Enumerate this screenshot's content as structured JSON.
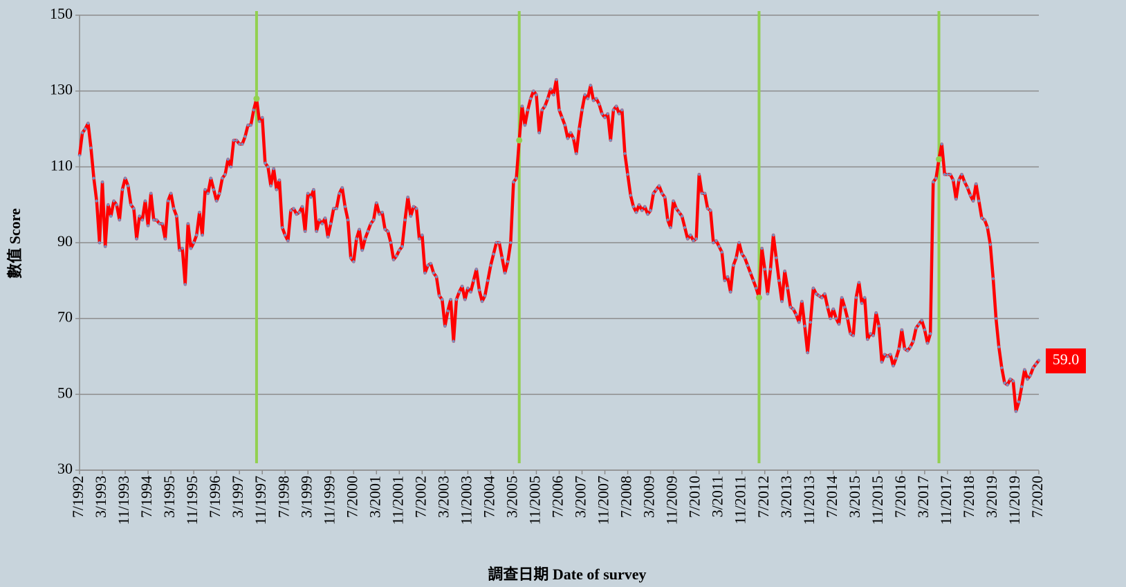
{
  "chart_data": {
    "type": "line",
    "xlabel": "調查日期   Date of survey",
    "ylabel": "數值 Score",
    "color": "#ff0000",
    "marker_color": "#7a8fc0",
    "grid": true,
    "ylim": [
      30,
      150
    ],
    "yticks": [
      30,
      50,
      70,
      90,
      110,
      130,
      150
    ],
    "reference_lines": {
      "color": "#92d050",
      "x": [
        62,
        154,
        238,
        301
      ]
    },
    "categories": [
      "7/1992",
      null,
      null,
      null,
      null,
      null,
      null,
      null,
      "3/1993",
      null,
      null,
      null,
      null,
      null,
      null,
      null,
      "11/1993",
      null,
      null,
      null,
      null,
      null,
      null,
      null,
      "7/1994",
      null,
      null,
      null,
      null,
      null,
      null,
      null,
      "3/1995",
      null,
      null,
      null,
      null,
      null,
      null,
      null,
      "11/1995",
      null,
      null,
      null,
      null,
      null,
      null,
      null,
      "7/1996",
      null,
      null,
      null,
      null,
      null,
      null,
      null,
      "3/1997",
      null,
      null,
      null,
      null,
      null,
      null,
      null,
      "11/1997",
      null,
      null,
      null,
      null,
      null,
      null,
      null,
      "7/1998",
      null,
      null,
      null,
      null,
      null,
      null,
      null,
      "3/1999",
      null,
      null,
      null,
      null,
      null,
      null,
      null,
      "11/1999",
      null,
      null,
      null,
      null,
      null,
      null,
      null,
      "7/2000",
      null,
      null,
      null,
      null,
      null,
      null,
      null,
      "3/2001",
      null,
      null,
      null,
      null,
      null,
      null,
      null,
      "11/2001",
      null,
      null,
      null,
      null,
      null,
      null,
      null,
      "7/2002",
      null,
      null,
      null,
      null,
      null,
      null,
      null,
      "3/2003",
      null,
      null,
      null,
      null,
      null,
      null,
      null,
      "11/2003",
      null,
      null,
      null,
      null,
      null,
      null,
      null,
      "7/2004",
      null,
      null,
      null,
      null,
      null,
      null,
      null,
      "3/2005",
      null,
      null,
      null,
      null,
      null,
      null,
      null,
      "11/2005",
      null,
      null,
      null,
      null,
      null,
      null,
      null,
      "7/2006",
      null,
      null,
      null,
      null,
      null,
      null,
      null,
      "3/2007",
      null,
      null,
      null,
      null,
      null,
      null,
      null,
      "11/2007",
      null,
      null,
      null,
      null,
      null,
      null,
      null,
      "7/2008",
      null,
      null,
      null,
      null,
      null,
      null,
      null,
      "3/2009",
      null,
      null,
      null,
      null,
      null,
      null,
      null,
      "11/2009",
      null,
      null,
      null,
      null,
      null,
      null,
      null,
      "7/2010",
      null,
      null,
      null,
      null,
      null,
      null,
      null,
      "3/2011",
      null,
      null,
      null,
      null,
      null,
      null,
      null,
      "11/2011",
      null,
      null,
      null,
      null,
      null,
      null,
      null,
      "7/2012",
      null,
      null,
      null,
      null,
      null,
      null,
      null,
      "3/2013",
      null,
      null,
      null,
      null,
      null,
      null,
      null,
      "11/2013",
      null,
      null,
      null,
      null,
      null,
      null,
      null,
      "7/2014",
      null,
      null,
      null,
      null,
      null,
      null,
      null,
      "3/2015",
      null,
      null,
      null,
      null,
      null,
      null,
      null,
      "11/2015",
      null,
      null,
      null,
      null,
      null,
      null,
      null,
      "7/2016",
      null,
      null,
      null,
      null,
      null,
      null,
      null,
      "3/2017",
      null,
      null,
      null,
      null,
      null,
      null,
      null,
      "11/2017",
      null,
      null,
      null,
      null,
      null,
      null,
      null,
      "7/2018",
      null,
      null,
      null,
      null,
      null,
      null,
      null,
      "3/2019",
      null,
      null,
      null,
      null,
      null,
      null,
      null,
      "11/2019",
      null,
      null,
      null,
      null,
      null,
      null,
      null,
      "7/2020"
    ],
    "values": [
      113,
      119,
      120,
      121.5,
      115,
      107,
      101,
      90,
      106,
      89,
      100,
      97,
      101,
      100,
      96,
      104,
      107,
      105,
      100,
      99,
      91,
      97,
      96,
      101,
      94.5,
      103,
      96,
      96,
      95,
      95,
      91,
      101,
      103,
      99,
      97,
      88,
      88.5,
      79,
      95,
      88.5,
      90,
      92,
      98,
      92,
      104,
      103,
      107,
      104,
      101,
      103,
      107,
      108,
      112,
      110,
      117,
      117,
      116,
      116,
      118,
      121,
      121,
      125,
      128,
      122,
      123,
      111,
      110,
      105,
      109.5,
      104,
      106.5,
      94,
      92,
      90.5,
      98.5,
      99,
      97.5,
      98,
      99.5,
      93,
      103,
      102,
      104,
      93,
      96,
      95,
      96.5,
      91.5,
      95,
      99,
      99,
      103,
      104.5,
      99.5,
      96,
      86,
      85,
      91,
      93.5,
      88,
      91,
      93,
      95,
      96,
      100.5,
      97.5,
      98,
      93.5,
      93,
      90,
      85.5,
      86.5,
      88,
      89,
      96,
      102,
      97,
      99.5,
      99,
      91,
      92,
      82,
      84,
      84.5,
      82,
      81,
      76,
      75,
      68,
      72,
      75,
      64,
      75,
      77,
      78.5,
      75,
      78,
      77,
      80,
      83,
      77.5,
      74.5,
      76,
      80,
      84,
      87,
      90,
      90,
      86,
      82,
      85,
      90,
      106,
      107,
      117,
      126,
      121,
      125,
      128,
      130,
      129,
      119,
      125,
      126,
      128,
      130.5,
      129,
      133,
      125,
      123,
      121,
      117.5,
      119,
      117.5,
      113.5,
      120,
      125,
      129,
      128,
      131.5,
      127.5,
      128,
      126.5,
      124,
      123,
      124,
      117,
      125,
      126,
      124,
      125,
      113.5,
      108,
      102.5,
      99.5,
      98,
      100,
      98.5,
      99.5,
      97.5,
      98.5,
      103,
      104,
      105,
      103,
      102,
      96,
      94,
      101,
      99,
      98,
      97,
      94,
      91,
      92,
      90.5,
      91,
      108,
      103,
      103,
      99,
      98.5,
      90,
      90.5,
      89,
      87.5,
      80,
      81,
      77,
      84,
      86,
      90,
      87,
      86,
      84,
      82,
      80,
      78,
      75.5,
      88.5,
      83,
      76.5,
      83,
      92,
      86,
      80,
      74.5,
      82.5,
      78,
      73,
      72.5,
      71,
      69,
      74.5,
      68,
      61,
      69,
      78,
      76.5,
      76,
      75.5,
      76.5,
      73,
      70,
      72.5,
      70,
      68.5,
      75.5,
      73,
      70,
      66,
      65.5,
      75.5,
      79.5,
      74,
      75.5,
      64.5,
      66,
      65.5,
      71.5,
      68,
      58.5,
      60.5,
      60,
      60.5,
      57.5,
      59.5,
      62,
      67,
      62,
      61.5,
      62.5,
      64,
      67.5,
      68.5,
      69.5,
      67,
      63.5,
      66,
      106,
      107,
      112,
      116,
      108,
      108,
      108,
      106.5,
      101.5,
      106.5,
      108,
      106,
      104.5,
      102.5,
      101,
      105.5,
      101,
      96.5,
      96,
      94,
      89.5,
      80.5,
      70,
      62.5,
      57,
      53,
      52.5,
      54,
      53.5,
      45.5,
      48,
      52,
      56.5,
      54,
      55,
      57,
      58,
      59
    ],
    "value_labels": [
      null,
      null,
      null,
      null,
      null,
      null,
      null,
      null,
      null,
      null,
      null,
      null,
      null,
      null,
      null,
      null,
      null,
      null,
      null,
      null,
      null,
      null,
      null,
      null,
      null,
      null,
      null,
      null,
      null,
      null,
      null,
      null,
      null,
      null,
      null,
      null,
      null,
      null,
      null,
      null,
      null,
      null,
      null,
      null,
      null,
      null,
      null,
      null,
      null,
      null,
      null,
      null,
      null,
      null,
      null,
      null,
      null,
      null,
      null,
      null,
      null,
      null,
      null,
      null,
      null,
      null,
      null,
      null,
      null,
      null,
      null,
      null,
      null,
      null,
      null,
      null,
      null,
      null,
      null,
      null,
      null,
      null,
      null,
      null,
      null,
      null,
      null,
      null,
      null,
      null,
      null,
      null,
      null,
      null,
      null,
      null,
      null,
      null,
      null,
      null,
      null,
      null,
      null,
      null,
      null,
      null,
      null,
      null,
      null,
      null,
      null,
      null,
      null,
      null,
      null,
      null,
      null,
      null,
      null,
      null,
      null,
      null,
      null,
      null,
      null,
      null,
      null,
      null,
      null,
      null,
      null,
      null,
      null,
      null,
      null,
      null,
      null,
      null,
      null,
      null,
      null,
      null,
      null,
      null,
      null,
      null,
      null,
      null,
      null,
      null,
      null,
      null,
      null,
      null,
      null,
      null,
      null,
      null,
      null,
      null,
      null,
      null,
      null,
      null,
      null,
      null,
      null,
      null,
      null,
      null,
      null,
      null,
      null,
      null,
      null,
      null,
      null,
      null,
      null,
      null,
      null,
      null,
      null,
      null,
      null,
      null,
      null,
      null,
      null,
      null,
      null,
      null,
      null,
      null,
      null,
      null,
      null,
      null,
      null,
      null,
      null,
      null,
      null,
      null,
      null,
      null,
      null,
      null,
      null,
      null,
      null,
      null,
      null,
      null,
      null,
      null,
      null,
      null,
      null,
      null,
      null,
      null,
      null,
      null,
      null,
      null,
      null,
      null,
      null,
      null,
      null,
      null,
      null,
      null,
      null,
      null,
      null,
      null,
      null,
      null,
      null,
      null,
      null,
      null,
      null,
      null,
      null,
      null,
      null,
      null,
      null,
      null,
      null,
      null,
      null,
      null,
      null,
      null,
      null,
      null,
      null,
      null,
      null,
      null,
      null,
      null,
      null,
      null,
      null,
      null,
      null,
      null,
      null,
      null,
      null,
      null,
      null,
      null,
      null,
      null,
      null,
      null,
      null,
      null,
      null,
      null,
      null,
      null,
      null,
      null,
      null,
      null,
      null,
      null,
      null,
      null,
      null,
      null,
      null,
      null,
      null,
      null,
      null,
      null,
      null,
      null,
      null,
      null,
      null,
      null,
      null,
      null,
      null,
      null,
      null,
      null,
      null,
      null,
      null,
      null,
      null,
      null,
      null,
      null,
      null,
      null,
      null,
      null,
      null,
      null,
      null,
      null,
      null,
      null,
      null,
      null,
      "59.0"
    ]
  }
}
